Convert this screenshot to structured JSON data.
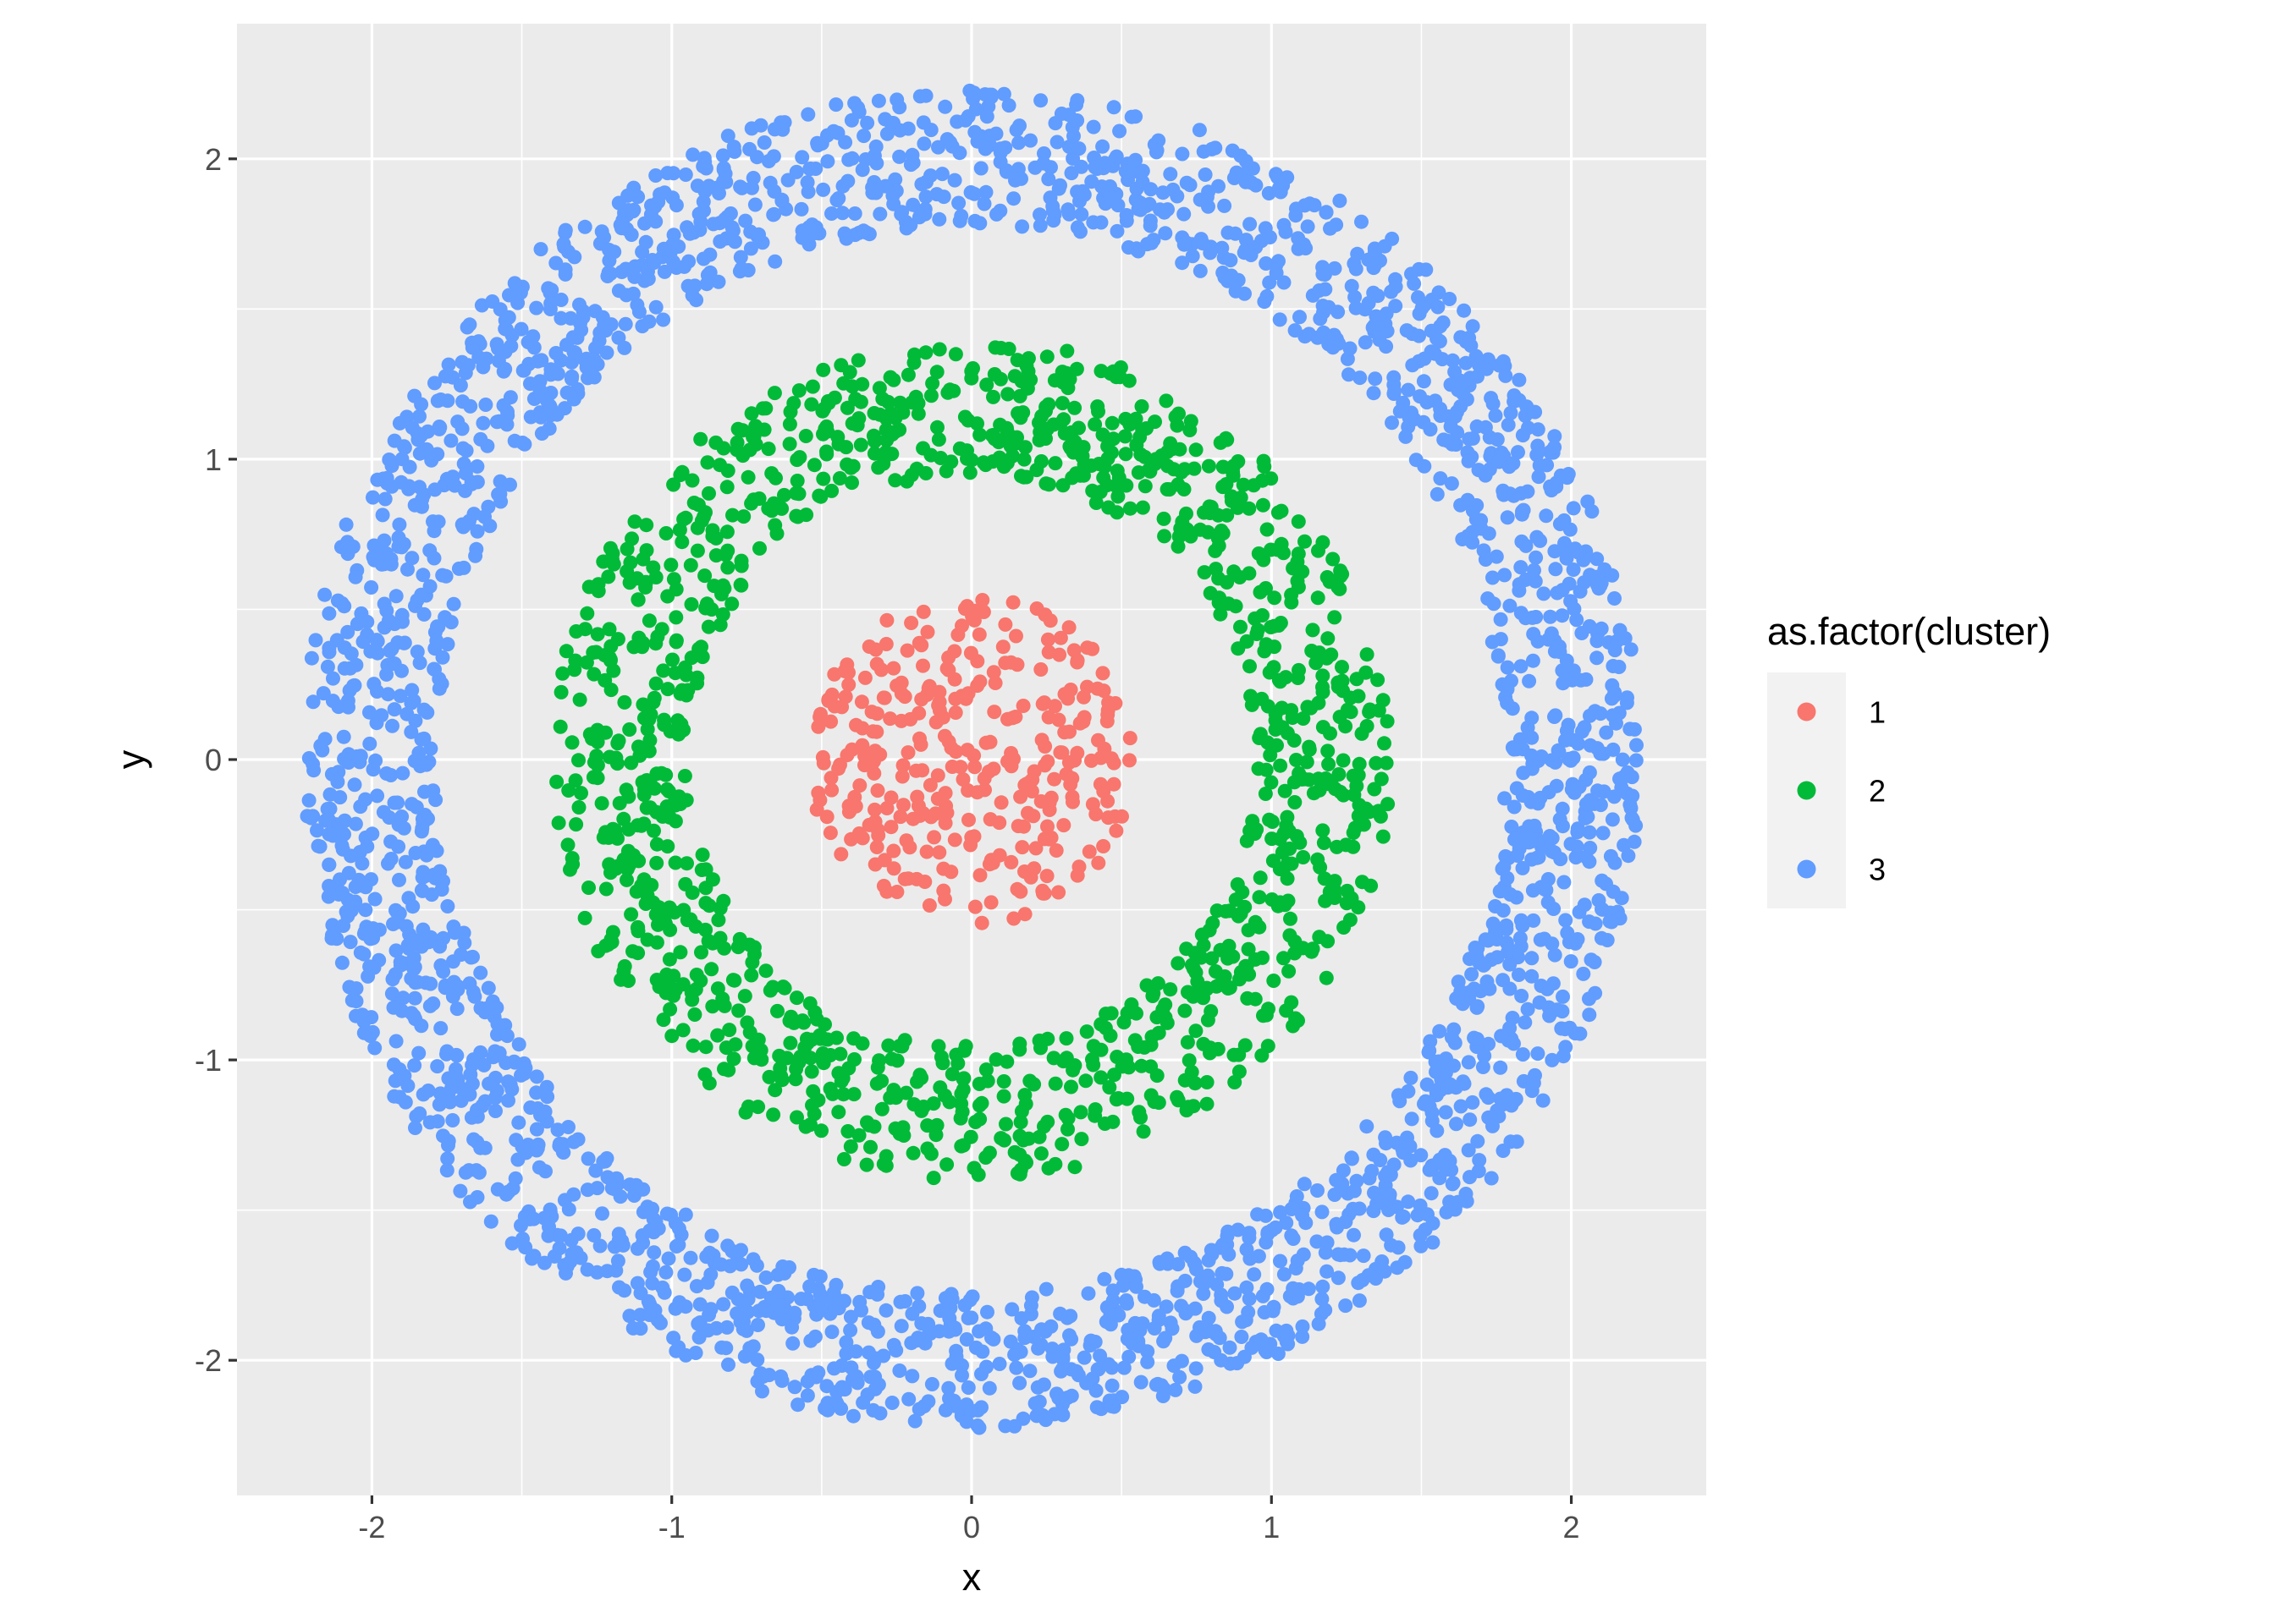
{
  "chart_data": {
    "type": "scatter",
    "title": "",
    "xlabel": "x",
    "ylabel": "y",
    "xlim": [
      -2.45,
      2.45
    ],
    "ylim": [
      -2.45,
      2.45
    ],
    "x_ticks": [
      -2,
      -1,
      0,
      1,
      2
    ],
    "y_ticks": [
      -2,
      -1,
      0,
      1,
      2
    ],
    "x_tick_labels": [
      "-2",
      "-1",
      "0",
      "1",
      "2"
    ],
    "y_tick_labels": [
      "-2",
      "-1",
      "0",
      "1",
      "2"
    ],
    "grid": true,
    "panel_background": "#EBEBEB",
    "grid_color": "#FFFFFF",
    "legend": {
      "title": "as.factor(cluster)",
      "placement": "right",
      "entries": [
        "1",
        "2",
        "3"
      ]
    },
    "series": [
      {
        "name": "1",
        "color": "#F8766D",
        "shape": "disk",
        "r_min": 0.0,
        "r_max": 0.55,
        "n_points": 330
      },
      {
        "name": "2",
        "color": "#00BA38",
        "shape": "ring",
        "r_min": 0.95,
        "r_max": 1.4,
        "n_points": 1300
      },
      {
        "name": "3",
        "color": "#619CFF",
        "shape": "ring",
        "r_min": 1.78,
        "r_max": 2.23,
        "n_points": 2600
      }
    ]
  }
}
